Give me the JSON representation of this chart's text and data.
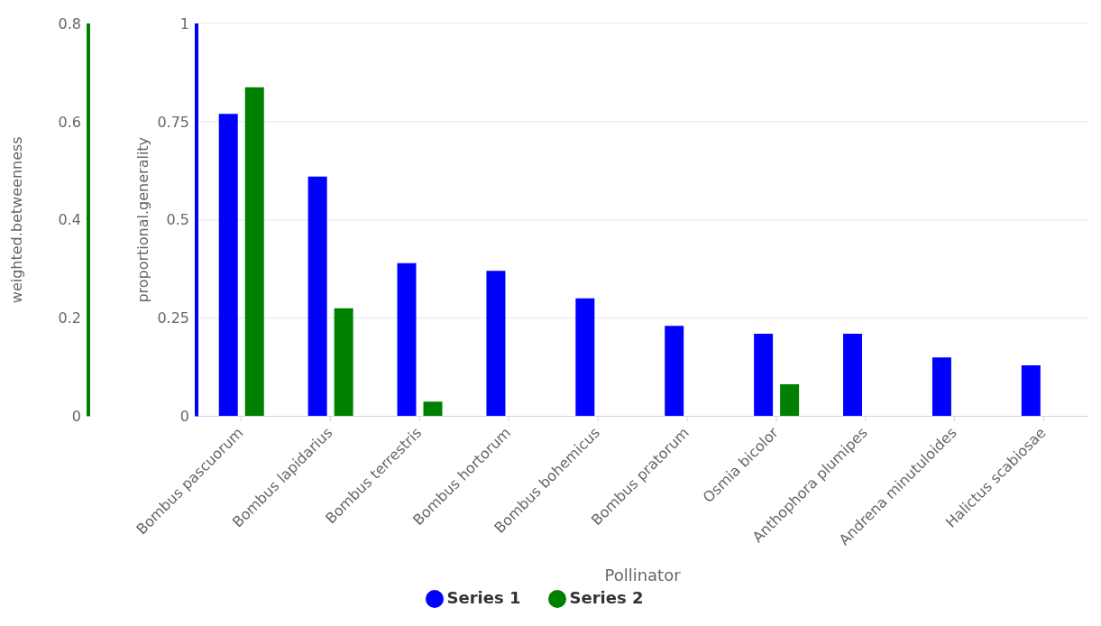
{
  "chart_data": {
    "type": "bar",
    "xlabel": "Pollinator",
    "ylabel": "proportional.generality",
    "y2label": "weighted.betweenness",
    "categories": [
      "Bombus pascuorum",
      "Bombus lapidarius",
      "Bombus terrestris",
      "Bombus hortorum",
      "Bombus bohemicus",
      "Bombus pratorum",
      "Osmia bicolor",
      "Anthophora plumipes",
      "Andrena minutuloides",
      "Halictus scabiosae"
    ],
    "series": [
      {
        "name": "Series 1",
        "color": "#0000ff",
        "values": [
          0.77,
          0.61,
          0.39,
          0.37,
          0.3,
          0.23,
          0.21,
          0.21,
          0.15,
          0.13
        ]
      },
      {
        "name": "Series 2",
        "color": "#008000",
        "axis": "y2",
        "values": [
          0.67,
          0.22,
          0.03,
          null,
          null,
          null,
          0.065,
          null,
          null,
          null
        ]
      }
    ],
    "ylim": [
      0,
      1
    ],
    "yticks": [
      0,
      0.25,
      0.5,
      0.75,
      1
    ],
    "y2lim": [
      0,
      0.8
    ],
    "y2ticks": [
      0,
      0.2,
      0.4,
      0.6,
      0.8
    ],
    "grid": "y",
    "legend": "bottom"
  }
}
